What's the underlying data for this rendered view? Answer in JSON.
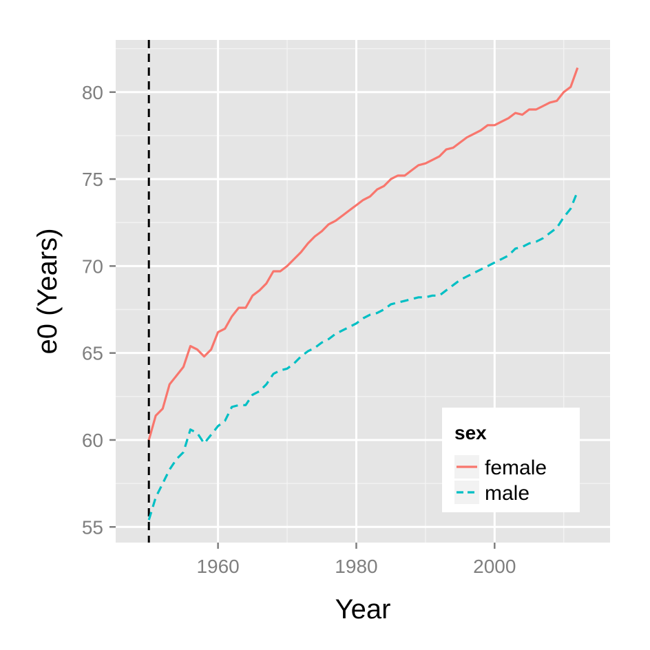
{
  "chart_data": {
    "type": "line",
    "xlabel": "Year",
    "ylabel": "e0 (Years)",
    "xlim": [
      1945.2,
      2016.7
    ],
    "ylim": [
      54.1,
      83
    ],
    "x_ticks": [
      1960,
      1980,
      2000
    ],
    "x_tick_labels": [
      "1960",
      "1980",
      "2000"
    ],
    "y_ticks": [
      55,
      60,
      65,
      70,
      75,
      80
    ],
    "y_tick_labels": [
      "55",
      "60",
      "65",
      "70",
      "75",
      "80"
    ],
    "grid": true,
    "panel_background": "#e5e5e5",
    "grid_color": "#ffffff",
    "reference_line": {
      "x": 1950,
      "color": "#000000",
      "style": "dashed"
    },
    "legend": {
      "title": "sex",
      "placement": "bottom-right",
      "entries": [
        "female",
        "male"
      ]
    },
    "x": [
      1950,
      1951,
      1952,
      1953,
      1954,
      1955,
      1956,
      1957,
      1958,
      1959,
      1960,
      1961,
      1962,
      1963,
      1964,
      1965,
      1966,
      1967,
      1968,
      1969,
      1970,
      1971,
      1972,
      1973,
      1974,
      1975,
      1976,
      1977,
      1978,
      1979,
      1980,
      1981,
      1982,
      1983,
      1984,
      1985,
      1986,
      1987,
      1988,
      1989,
      1990,
      1991,
      1992,
      1993,
      1994,
      1995,
      1996,
      1997,
      1998,
      1999,
      2000,
      2001,
      2002,
      2003,
      2004,
      2005,
      2006,
      2007,
      2008,
      2009,
      2010,
      2011,
      2012
    ],
    "series": [
      {
        "name": "female",
        "color": "#f8766d",
        "dash": "solid",
        "values": [
          60.0,
          61.4,
          61.8,
          63.2,
          63.7,
          64.2,
          65.4,
          65.2,
          64.8,
          65.2,
          66.2,
          66.4,
          67.1,
          67.6,
          67.6,
          68.3,
          68.6,
          69.0,
          69.7,
          69.7,
          70.0,
          70.4,
          70.8,
          71.3,
          71.7,
          72.0,
          72.4,
          72.6,
          72.9,
          73.2,
          73.5,
          73.8,
          74.0,
          74.4,
          74.6,
          75.0,
          75.2,
          75.2,
          75.5,
          75.8,
          75.9,
          76.1,
          76.3,
          76.7,
          76.8,
          77.1,
          77.4,
          77.6,
          77.8,
          78.1,
          78.1,
          78.3,
          78.5,
          78.8,
          78.7,
          79.0,
          79.0,
          79.2,
          79.4,
          79.5,
          80.0,
          80.3,
          81.4
        ]
      },
      {
        "name": "male",
        "color": "#00bfc4",
        "dash": "dashed",
        "values": [
          55.4,
          56.7,
          57.5,
          58.3,
          58.9,
          59.3,
          60.6,
          60.4,
          59.8,
          60.3,
          60.8,
          61.1,
          61.9,
          62.0,
          62.0,
          62.6,
          62.8,
          63.2,
          63.8,
          64.0,
          64.1,
          64.4,
          64.8,
          65.1,
          65.3,
          65.6,
          65.8,
          66.1,
          66.3,
          66.5,
          66.7,
          67.0,
          67.2,
          67.3,
          67.5,
          67.8,
          67.9,
          68.0,
          68.1,
          68.2,
          68.2,
          68.3,
          68.3,
          68.6,
          68.9,
          69.2,
          69.4,
          69.6,
          69.8,
          70.0,
          70.2,
          70.4,
          70.6,
          71.0,
          71.1,
          71.3,
          71.4,
          71.6,
          71.9,
          72.2,
          72.8,
          73.3,
          74.3
        ]
      }
    ]
  }
}
